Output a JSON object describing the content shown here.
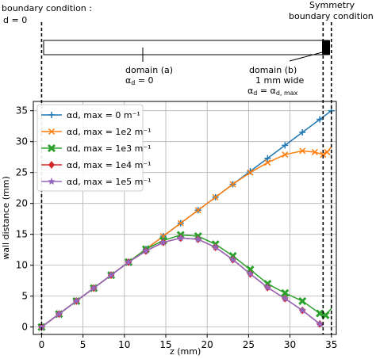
{
  "schematic": {
    "left_label_line1": "boundary condition :",
    "left_label_line2": "d = 0",
    "right_label_line1": "Symmetry",
    "right_label_line2": "boundary condition",
    "domain_a_line1": "domain (a)",
    "domain_a_line2": "αd = 0",
    "domain_b_line1": "domain (b)",
    "domain_b_line2": "1 mm wide",
    "domain_b_line3": "αd = αd, max"
  },
  "chart_data": {
    "type": "line",
    "xlabel": "z (mm)",
    "ylabel": "wall distance (mm)",
    "xlim": [
      -1,
      35.6
    ],
    "ylim": [
      -1.2,
      36.5
    ],
    "xticks": [
      0,
      5,
      10,
      15,
      20,
      25,
      30,
      35
    ],
    "yticks": [
      0,
      5,
      10,
      15,
      20,
      25,
      30,
      35
    ],
    "grid": true,
    "legend_position": "top-left",
    "vertical_lines": [
      0,
      34,
      35
    ],
    "series": [
      {
        "name": "αd, max = 0 m⁻¹",
        "color": "#1f77b4",
        "marker": "plus",
        "x": [
          0,
          2.1,
          4.2,
          6.3,
          8.4,
          10.5,
          12.6,
          14.7,
          16.8,
          18.9,
          21.0,
          23.1,
          25.2,
          27.3,
          29.4,
          31.5,
          33.6,
          35.0
        ],
        "y": [
          0,
          2.1,
          4.2,
          6.3,
          8.4,
          10.5,
          12.6,
          14.7,
          16.8,
          18.9,
          21.0,
          23.1,
          25.2,
          27.3,
          29.4,
          31.5,
          33.6,
          35.0
        ]
      },
      {
        "name": "αd, max = 1e2 m⁻¹",
        "color": "#ff7f0e",
        "marker": "x",
        "x": [
          0,
          2.1,
          4.2,
          6.3,
          8.4,
          10.5,
          12.6,
          14.7,
          16.8,
          18.9,
          21.0,
          23.1,
          25.2,
          27.3,
          29.4,
          31.5,
          33.0,
          34.0,
          34.5,
          35.0
        ],
        "y": [
          0,
          2.1,
          4.2,
          6.3,
          8.4,
          10.5,
          12.6,
          14.7,
          16.8,
          18.9,
          21.0,
          23.1,
          25.0,
          26.6,
          27.9,
          28.5,
          28.3,
          27.9,
          28.3,
          29.2
        ]
      },
      {
        "name": "αd, max = 1e3 m⁻¹",
        "color": "#2ca02c",
        "marker": "filled-x",
        "x": [
          0,
          2.1,
          4.2,
          6.3,
          8.4,
          10.5,
          12.6,
          14.7,
          16.8,
          18.9,
          21.0,
          23.1,
          25.2,
          27.3,
          29.4,
          31.5,
          33.6,
          34.3,
          35.0
        ],
        "y": [
          0,
          2.1,
          4.2,
          6.3,
          8.4,
          10.5,
          12.6,
          14.0,
          14.9,
          14.7,
          13.4,
          11.5,
          9.3,
          7.0,
          5.5,
          4.2,
          2.2,
          1.9,
          3.0
        ]
      },
      {
        "name": "αd, max = 1e4 m⁻¹",
        "color": "#d62728",
        "marker": "diamond",
        "x": [
          0,
          2.1,
          4.2,
          6.3,
          8.4,
          10.5,
          12.6,
          14.7,
          16.8,
          18.9,
          21.0,
          23.1,
          25.2,
          27.3,
          29.4,
          31.5,
          33.6,
          34.0
        ],
        "y": [
          0,
          2.1,
          4.2,
          6.3,
          8.4,
          10.5,
          12.3,
          13.7,
          14.4,
          14.2,
          12.9,
          10.9,
          8.6,
          6.4,
          4.6,
          2.7,
          0.5,
          0.2
        ]
      },
      {
        "name": "αd, max = 1e5 m⁻¹",
        "color": "#9467bd",
        "marker": "star",
        "x": [
          0,
          2.1,
          4.2,
          6.3,
          8.4,
          10.5,
          12.6,
          14.7,
          16.8,
          18.9,
          21.0,
          23.1,
          25.2,
          27.3,
          29.4,
          31.5,
          33.6,
          34.0
        ],
        "y": [
          0,
          2.1,
          4.2,
          6.3,
          8.4,
          10.5,
          12.3,
          13.7,
          14.4,
          14.2,
          12.9,
          10.9,
          8.6,
          6.4,
          4.6,
          2.7,
          0.5,
          0.2
        ]
      }
    ]
  }
}
